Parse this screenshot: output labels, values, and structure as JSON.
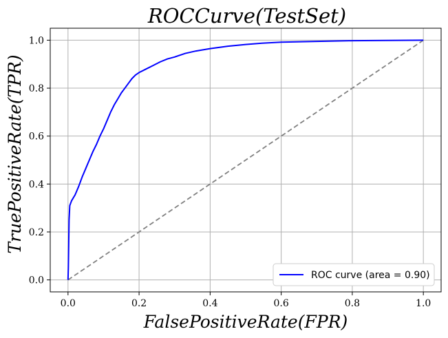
{
  "chart_data": {
    "type": "line",
    "title": "ROCCurve(TestSet)",
    "xlabel": "FalsePositiveRate(FPR)",
    "ylabel": "TruePositiveRate(TPR)",
    "xlim": [
      -0.05,
      1.05
    ],
    "ylim": [
      -0.05,
      1.05
    ],
    "xticks": [
      "0.0",
      "0.2",
      "0.4",
      "0.6",
      "0.8",
      "1.0"
    ],
    "yticks": [
      "0.0",
      "0.2",
      "0.4",
      "0.6",
      "0.8",
      "1.0"
    ],
    "grid": true,
    "legend_position": "bottom-right",
    "series": [
      {
        "name": "ROC curve (area = 0.90)",
        "color": "#0000ff",
        "style": "solid",
        "x": [
          0.0,
          0.001,
          0.002,
          0.003,
          0.005,
          0.01,
          0.02,
          0.03,
          0.04,
          0.05,
          0.06,
          0.07,
          0.08,
          0.09,
          0.1,
          0.11,
          0.12,
          0.13,
          0.14,
          0.15,
          0.16,
          0.17,
          0.18,
          0.19,
          0.2,
          0.22,
          0.24,
          0.26,
          0.28,
          0.3,
          0.33,
          0.36,
          0.4,
          0.45,
          0.5,
          0.55,
          0.6,
          0.7,
          0.8,
          0.9,
          1.0
        ],
        "y": [
          0.0,
          0.05,
          0.15,
          0.25,
          0.31,
          0.33,
          0.355,
          0.39,
          0.43,
          0.465,
          0.5,
          0.535,
          0.565,
          0.6,
          0.63,
          0.665,
          0.7,
          0.73,
          0.755,
          0.78,
          0.8,
          0.82,
          0.84,
          0.855,
          0.865,
          0.88,
          0.895,
          0.91,
          0.922,
          0.93,
          0.945,
          0.955,
          0.965,
          0.975,
          0.982,
          0.988,
          0.992,
          0.995,
          0.998,
          0.999,
          1.0
        ]
      },
      {
        "name": "",
        "color": "#808080",
        "style": "dashed",
        "x": [
          0.0,
          1.0
        ],
        "y": [
          0.0,
          1.0
        ]
      }
    ]
  }
}
